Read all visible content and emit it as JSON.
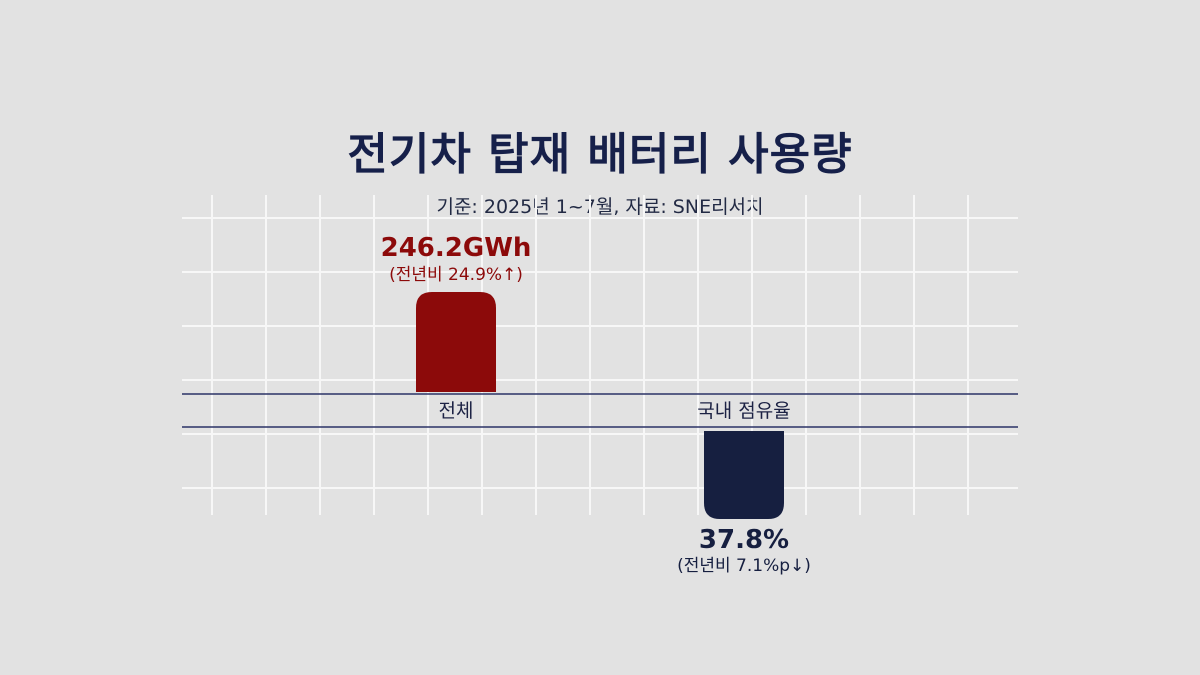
{
  "title": "전기차 탑재 배터리 사용량",
  "subtitle": "기준: 2025년 1~7월, 자료: SNE리서치",
  "colors": {
    "total": "#8c0a0a",
    "share": "#161f40",
    "text_dark": "#16204a"
  },
  "chart_data": {
    "type": "bar",
    "title": "전기차 탑재 배터리 사용량",
    "subtitle": "기준: 2025년 1~7월, 자료: SNE리서치",
    "categories": [
      "전체",
      "국내 점유율"
    ],
    "bars": [
      {
        "category": "전체",
        "direction": "up",
        "value": 246.2,
        "unit": "GWh",
        "value_label": "246.2GWh",
        "change_label": "(전년비 24.9%↑)",
        "color": "#8c0a0a"
      },
      {
        "category": "국내 점유율",
        "direction": "down",
        "value": 37.8,
        "unit": "%",
        "value_label": "37.8%",
        "change_label": "(전년비 7.1%p↓)",
        "color": "#161f40"
      }
    ],
    "grid": true,
    "legend": "none"
  }
}
